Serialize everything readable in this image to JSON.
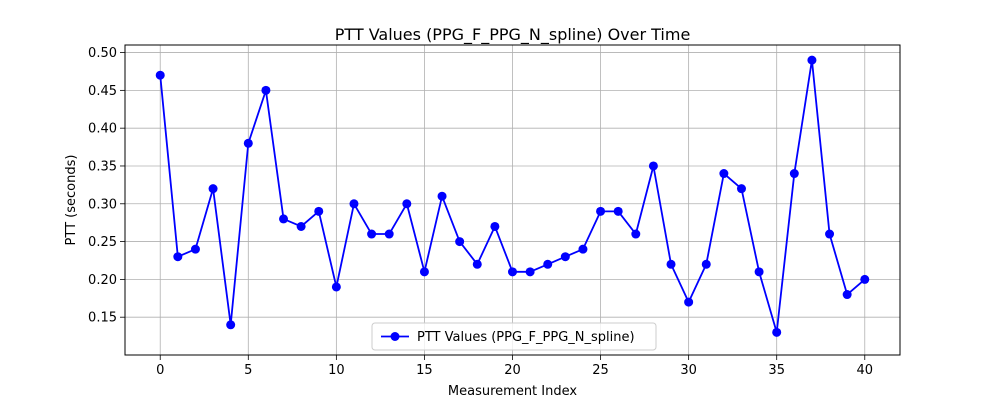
{
  "chart_data": {
    "type": "line",
    "title": "PTT Values (PPG_F_PPG_N_spline) Over Time",
    "xlabel": "Measurement Index",
    "ylabel": "PTT (seconds)",
    "xlim": [
      -2,
      42
    ],
    "ylim": [
      0.1,
      0.51
    ],
    "xticks": [
      0,
      5,
      10,
      15,
      20,
      25,
      30,
      35,
      40
    ],
    "xtick_labels": [
      "0",
      "5",
      "10",
      "15",
      "20",
      "25",
      "30",
      "35",
      "40"
    ],
    "yticks": [
      0.15,
      0.2,
      0.25,
      0.3,
      0.35,
      0.4,
      0.45,
      0.5
    ],
    "ytick_labels": [
      "0.15",
      "0.20",
      "0.25",
      "0.30",
      "0.35",
      "0.40",
      "0.45",
      "0.50"
    ],
    "grid": true,
    "legend_position": "bottom-center",
    "series": [
      {
        "name": "PTT Values (PPG_F_PPG_N_spline)",
        "color": "#0000ff",
        "marker": "circle",
        "x": [
          0,
          1,
          2,
          3,
          4,
          5,
          6,
          7,
          8,
          9,
          10,
          11,
          12,
          13,
          14,
          15,
          16,
          17,
          18,
          19,
          20,
          21,
          22,
          23,
          24,
          25,
          26,
          27,
          28,
          29,
          30,
          31,
          32,
          33,
          34,
          35,
          36,
          37,
          38,
          39,
          40
        ],
        "y": [
          0.47,
          0.23,
          0.24,
          0.32,
          0.14,
          0.38,
          0.45,
          0.28,
          0.27,
          0.29,
          0.19,
          0.3,
          0.26,
          0.26,
          0.3,
          0.21,
          0.31,
          0.25,
          0.22,
          0.27,
          0.21,
          0.21,
          0.22,
          0.23,
          0.24,
          0.29,
          0.29,
          0.26,
          0.35,
          0.22,
          0.17,
          0.22,
          0.34,
          0.32,
          0.21,
          0.13,
          0.34,
          0.49,
          0.26,
          0.18,
          0.2
        ]
      }
    ]
  }
}
